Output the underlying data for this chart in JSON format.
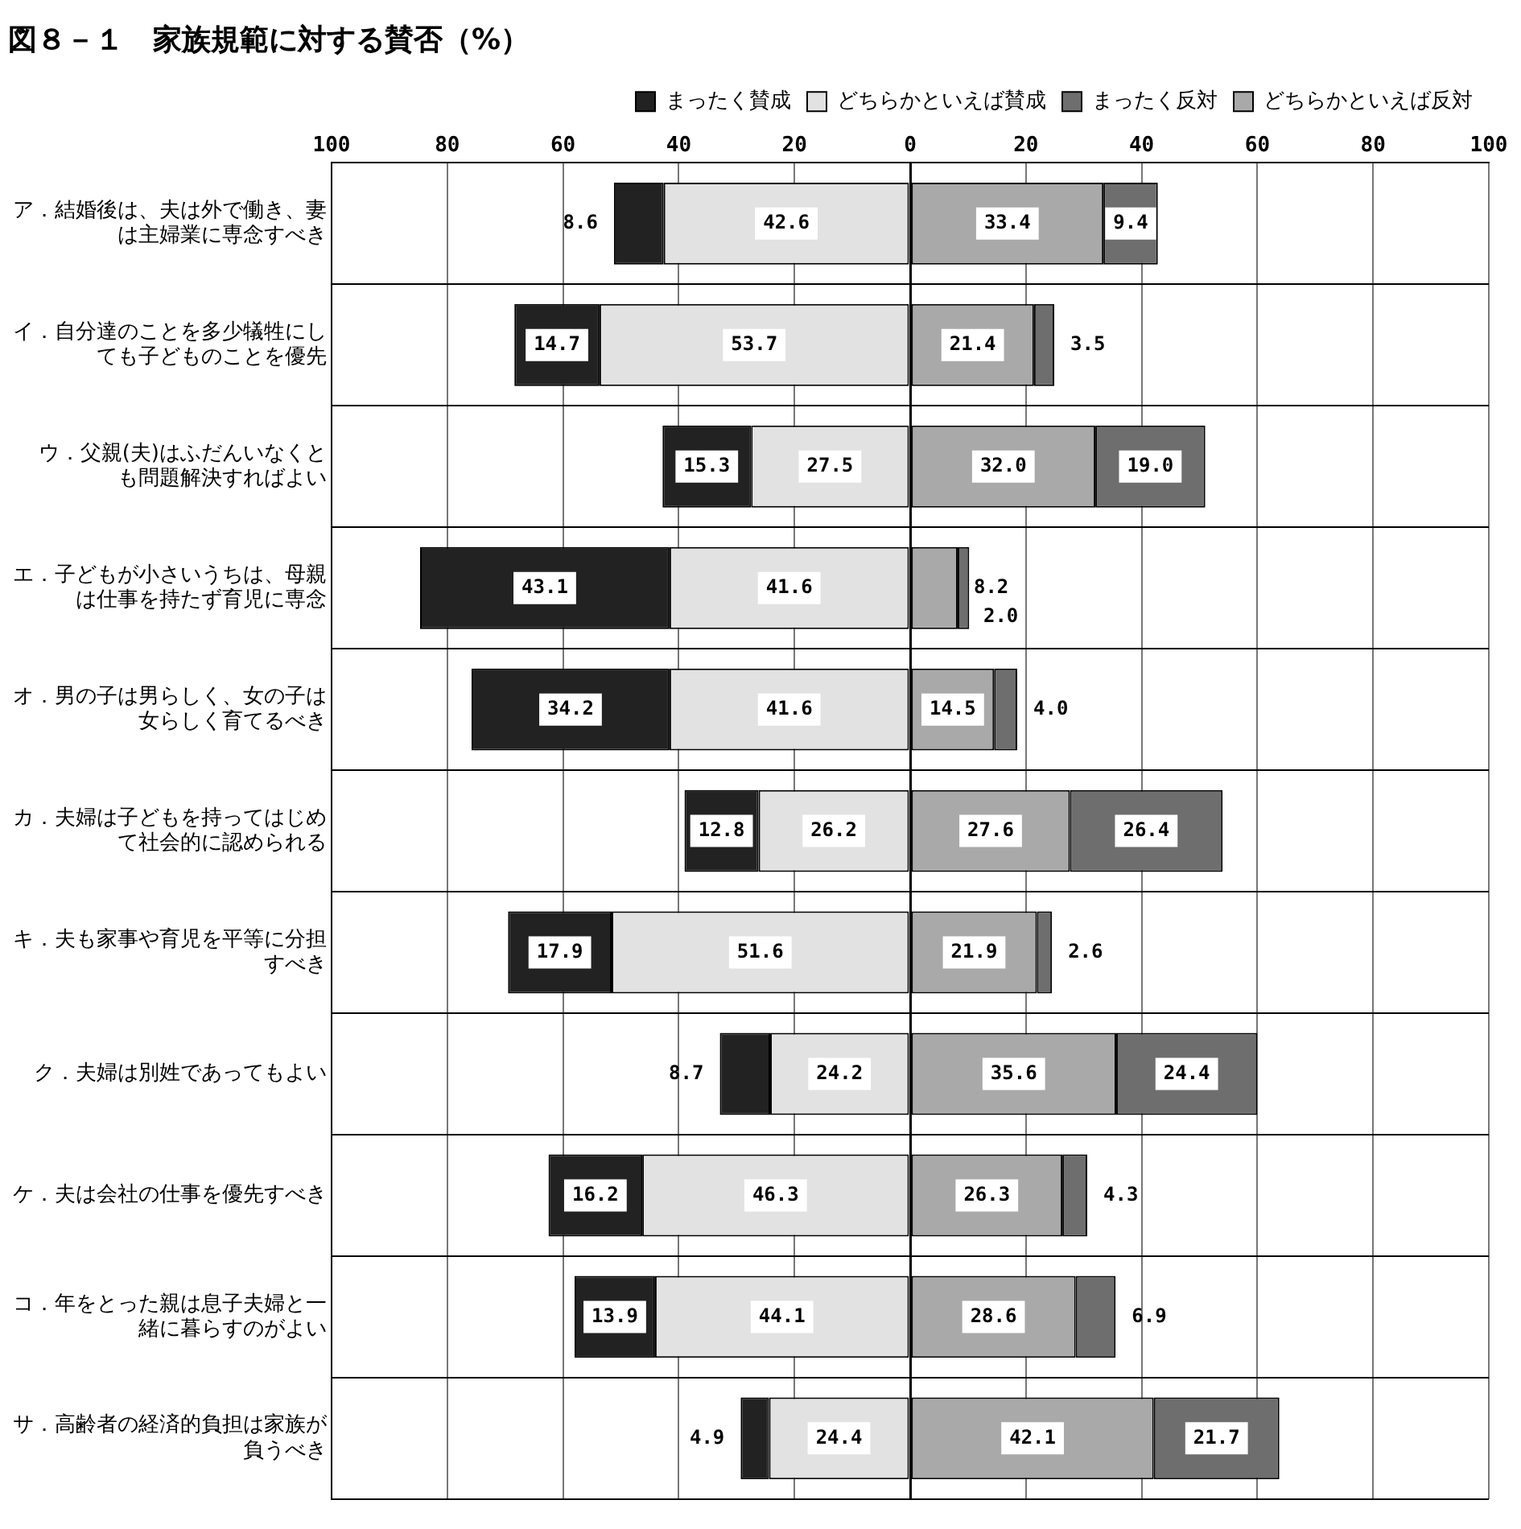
{
  "chart_data": {
    "type": "bar",
    "orientation": "horizontal",
    "title": "図８－１　家族規範に対する賛否（%）",
    "categories": [
      "ア．結婚後は、夫は外で働き、妻は主婦業に専念すべき",
      "イ．自分達のことを多少犠牲にしても子どものことを優先",
      "ウ．父親(夫)はふだんいなくとも問題解決すればよい",
      "エ．子どもが小さいうちは、母親は仕事を持たず育児に専念",
      "オ．男の子は男らしく、女の子は女らしく育てるべき",
      "カ．夫婦は子どもを持ってはじめて社会的に認められる",
      "キ．夫も家事や育児を平等に分担すべき",
      "ク．夫婦は別姓であってもよい",
      "ケ．夫は会社の仕事を優先すべき",
      "コ．年をとった親は息子夫婦と一緒に暮らすのがよい",
      "サ．高齢者の経済的負担は家族が負うべき"
    ],
    "series": [
      {
        "name": "どちらかといえば賛成",
        "color": "#e2e2e2",
        "values": [
          42.6,
          53.7,
          27.5,
          41.6,
          41.6,
          26.2,
          51.6,
          24.2,
          46.3,
          44.1,
          24.4
        ],
        "value_labels": [
          "42.6",
          "53.7",
          "27.5",
          "41.6",
          "41.6",
          "26.2",
          "51.6",
          "24.2",
          "46.3",
          "44.1",
          "24.4"
        ],
        "base": [
          -42.6,
          -53.7,
          -27.5,
          -41.6,
          -41.6,
          -26.2,
          -51.6,
          -24.2,
          -46.3,
          -44.1,
          -24.4
        ]
      },
      {
        "name": "まったく賛成",
        "color": "#222222",
        "values": [
          8.6,
          14.7,
          15.3,
          43.1,
          34.2,
          12.8,
          17.9,
          8.7,
          16.2,
          13.9,
          4.9
        ],
        "value_labels": [
          "8.6",
          "14.7",
          "15.3",
          "43.1",
          "34.2",
          "12.8",
          "17.9",
          "8.7",
          "16.2",
          "13.9",
          "4.9"
        ],
        "base": [
          -51.2,
          -68.4,
          -42.8,
          -84.7,
          -75.8,
          -39.0,
          -69.5,
          -32.9,
          -62.5,
          -58.0,
          -29.3
        ]
      },
      {
        "name": "どちらかといえば反対",
        "color": "#a9a9a9",
        "values": [
          33.4,
          21.4,
          32.0,
          8.2,
          14.5,
          27.6,
          21.9,
          35.6,
          26.3,
          28.6,
          42.1
        ],
        "value_labels": [
          "33.4",
          "21.4",
          "32.0",
          "8.2",
          "14.5",
          "27.6",
          "21.9",
          "35.6",
          "26.3",
          "28.6",
          "42.1"
        ],
        "base": [
          0,
          0,
          0,
          0,
          0,
          0,
          0,
          0,
          0,
          0,
          0
        ]
      },
      {
        "name": "まったく反対",
        "color": "#6e6e6e",
        "values": [
          9.4,
          3.5,
          19.0,
          2.0,
          4.0,
          26.4,
          2.6,
          24.4,
          4.3,
          6.9,
          21.7
        ],
        "value_labels": [
          "9.4",
          "3.5",
          "19.0",
          "2.0",
          "4.0",
          "26.4",
          "2.6",
          "24.4",
          "4.3",
          "6.9",
          "21.7"
        ],
        "base": [
          33.4,
          21.4,
          32.0,
          8.2,
          14.5,
          27.6,
          21.9,
          35.6,
          26.3,
          28.6,
          42.1
        ]
      }
    ],
    "xlim": [
      -100,
      100
    ],
    "xticks": [
      {
        "value": -100,
        "label": "100"
      },
      {
        "value": -80,
        "label": "80"
      },
      {
        "value": -60,
        "label": "60"
      },
      {
        "value": -40,
        "label": "40"
      },
      {
        "value": -20,
        "label": "20"
      },
      0,
      20,
      40,
      60,
      80,
      100
    ],
    "grid": true,
    "legend": "top right"
  }
}
